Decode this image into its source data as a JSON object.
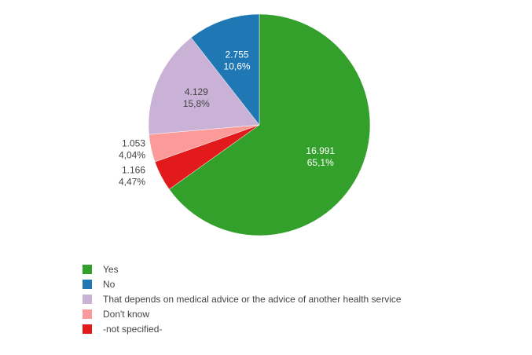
{
  "chart_data": {
    "type": "pie",
    "start": "12 o'clock, clockwise",
    "legend": "bottom-left",
    "slices": [
      {
        "name": "Yes",
        "value": 16991,
        "value_label": "16.991",
        "percent_label": "65,1%",
        "color": "#33a02c",
        "label_color": "#ffffff",
        "label_position": "inside"
      },
      {
        "name": "-not specified-",
        "value": 1166,
        "value_label": "1.166",
        "percent_label": "4,47%",
        "color": "#e31a1c",
        "label_color": "#444444",
        "label_position": "outside"
      },
      {
        "name": "Don't know",
        "value": 1053,
        "value_label": "1.053",
        "percent_label": "4,04%",
        "color": "#fb9a99",
        "label_color": "#444444",
        "label_position": "outside"
      },
      {
        "name": "That depends on medical advice or the advice of another health service",
        "value": 4129,
        "value_label": "4.129",
        "percent_label": "15,8%",
        "color": "#cab2d6",
        "label_color": "#444444",
        "label_position": "inside"
      },
      {
        "name": "No",
        "value": 2755,
        "value_label": "2.755",
        "percent_label": "10,6%",
        "color": "#1f78b4",
        "label_color": "#ffffff",
        "label_position": "inside"
      }
    ],
    "legend_order": [
      "Yes",
      "No",
      "That depends on medical advice or the advice of another health service",
      "Don't know",
      "-not specified-"
    ]
  }
}
